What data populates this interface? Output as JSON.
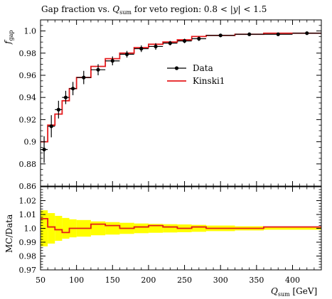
{
  "chart_data": [
    {
      "type": "line",
      "panel": "main",
      "title": "Gap fraction vs. Q_sum for veto region: 0.8 < |y| < 1.5",
      "title_parts": {
        "lead": "Gap fraction vs. ",
        "q": "Q",
        "sub": "sum",
        "tail": " for veto region: 0.8 < |",
        "y": "y",
        "end": "| < 1.5"
      },
      "ylabel": "f_gap",
      "ylabel_parts": {
        "f": "f",
        "sub": "gap"
      },
      "xlim": [
        50,
        440
      ],
      "ylim": [
        0.86,
        1.01
      ],
      "x_ticks": [
        50,
        100,
        150,
        200,
        250,
        300,
        350,
        400
      ],
      "y_ticks": [
        0.86,
        0.88,
        0.9,
        0.92,
        0.94,
        0.96,
        0.98,
        1.0
      ],
      "y_tick_labels": [
        "0.86",
        "0.88",
        "0.9",
        "0.92",
        "0.94",
        "0.96",
        "0.98",
        "1.0"
      ],
      "legend_position": "right-middle",
      "series": [
        {
          "name": "Data",
          "color": "#000000",
          "points": [
            {
              "x": 55,
              "y": 0.893,
              "xerr": 5,
              "yerr": 0.012
            },
            {
              "x": 65,
              "y": 0.914,
              "xerr": 5,
              "yerr": 0.01
            },
            {
              "x": 75,
              "y": 0.929,
              "xerr": 5,
              "yerr": 0.008
            },
            {
              "x": 85,
              "y": 0.94,
              "xerr": 5,
              "yerr": 0.006
            },
            {
              "x": 95,
              "y": 0.948,
              "xerr": 5,
              "yerr": 0.006
            },
            {
              "x": 110,
              "y": 0.958,
              "xerr": 10,
              "yerr": 0.006
            },
            {
              "x": 130,
              "y": 0.965,
              "xerr": 10,
              "yerr": 0.005
            },
            {
              "x": 150,
              "y": 0.973,
              "xerr": 10,
              "yerr": 0.004
            },
            {
              "x": 170,
              "y": 0.979,
              "xerr": 10,
              "yerr": 0.003
            },
            {
              "x": 190,
              "y": 0.984,
              "xerr": 10,
              "yerr": 0.003
            },
            {
              "x": 210,
              "y": 0.986,
              "xerr": 10,
              "yerr": 0.003
            },
            {
              "x": 230,
              "y": 0.989,
              "xerr": 10,
              "yerr": 0.002
            },
            {
              "x": 250,
              "y": 0.991,
              "xerr": 10,
              "yerr": 0.002
            },
            {
              "x": 270,
              "y": 0.993,
              "xerr": 10,
              "yerr": 0.002
            },
            {
              "x": 300,
              "y": 0.996,
              "xerr": 20,
              "yerr": 0.001
            },
            {
              "x": 340,
              "y": 0.997,
              "xerr": 20,
              "yerr": 0.001
            },
            {
              "x": 380,
              "y": 0.997,
              "xerr": 20,
              "yerr": 0.001
            },
            {
              "x": 420,
              "y": 0.998,
              "xerr": 20,
              "yerr": 0.001
            }
          ]
        },
        {
          "name": "Kinski1",
          "color": "#e41a1c",
          "style": "step",
          "bin_edges": [
            50,
            60,
            70,
            80,
            90,
            100,
            120,
            140,
            160,
            180,
            200,
            220,
            240,
            260,
            280,
            320,
            360,
            400,
            440
          ],
          "values": [
            0.9,
            0.915,
            0.925,
            0.937,
            0.948,
            0.958,
            0.968,
            0.975,
            0.98,
            0.985,
            0.988,
            0.99,
            0.992,
            0.995,
            0.996,
            0.997,
            0.998,
            0.998
          ]
        }
      ]
    },
    {
      "type": "line",
      "panel": "ratio",
      "ylabel": "MC/Data",
      "xlabel": "Q_sum [GeV]",
      "xlabel_parts": {
        "q": "Q",
        "sub": "sum",
        "unit": " [GeV]"
      },
      "xlim": [
        50,
        440
      ],
      "ylim": [
        0.97,
        1.03
      ],
      "x_ticks": [
        50,
        100,
        150,
        200,
        250,
        300,
        350,
        400
      ],
      "x_tick_labels": [
        "50",
        "100",
        "150",
        "200",
        "250",
        "300",
        "350",
        "400"
      ],
      "y_ticks": [
        0.97,
        0.98,
        0.99,
        1.0,
        1.01,
        1.02
      ],
      "y_tick_labels": [
        "0.97",
        "0.98",
        "0.99",
        "1.0",
        "1.01",
        "1.02"
      ],
      "band_color": "#ffff00",
      "bin_edges": [
        50,
        60,
        70,
        80,
        90,
        100,
        120,
        140,
        160,
        180,
        200,
        220,
        240,
        260,
        280,
        320,
        360,
        400,
        440
      ],
      "band_halfwidth": [
        0.013,
        0.011,
        0.009,
        0.0075,
        0.0065,
        0.006,
        0.005,
        0.0045,
        0.004,
        0.0035,
        0.0032,
        0.003,
        0.0028,
        0.0025,
        0.002,
        0.0015,
        0.001,
        0.001
      ],
      "ratio_values": [
        1.007,
        1.001,
        0.999,
        0.997,
        1.0,
        1.0,
        1.003,
        1.002,
        1.0,
        1.001,
        1.002,
        1.001,
        1.0,
        1.001,
        1.0,
        1.0,
        1.001,
        1.001
      ]
    }
  ]
}
